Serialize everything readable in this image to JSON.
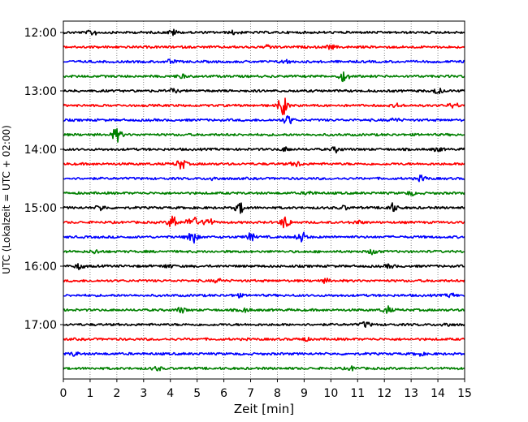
{
  "chart_data": {
    "type": "line",
    "title": "",
    "xlabel": "Zeit  [min]",
    "ylabel": "UTC (Lokalzeit = UTC + 02:00)",
    "xlim": [
      0,
      15
    ],
    "x_ticks": [
      "0",
      "1",
      "2",
      "3",
      "4",
      "5",
      "6",
      "7",
      "8",
      "9",
      "10",
      "11",
      "12",
      "13",
      "14",
      "15"
    ],
    "y_tick_labels": [
      "12:00",
      "13:00",
      "14:00",
      "15:00",
      "16:00",
      "17:00"
    ],
    "grid": "vertical dotted at each minute",
    "legend": "none",
    "trace_colors": [
      "#000000",
      "#ff0000",
      "#0000ff",
      "#008000"
    ],
    "traces": [
      {
        "start": "12:00",
        "events": [
          {
            "t": 1.1,
            "a": 3
          },
          {
            "t": 4.1,
            "a": 3
          },
          {
            "t": 6.4,
            "a": 2
          }
        ]
      },
      {
        "start": "12:15",
        "events": [
          {
            "t": 7.7,
            "a": 2
          },
          {
            "t": 10.0,
            "a": 2
          }
        ]
      },
      {
        "start": "12:30",
        "events": [
          {
            "t": 4.0,
            "a": 2
          },
          {
            "t": 8.3,
            "a": 2
          }
        ]
      },
      {
        "start": "12:45",
        "events": [
          {
            "t": 10.5,
            "a": 6
          },
          {
            "t": 4.4,
            "a": 2
          }
        ]
      },
      {
        "start": "13:00",
        "events": [
          {
            "t": 4.1,
            "a": 2
          },
          {
            "t": 14.0,
            "a": 3
          }
        ]
      },
      {
        "start": "13:15",
        "events": [
          {
            "t": 8.2,
            "a": 11
          },
          {
            "t": 12.5,
            "a": 2
          },
          {
            "t": 14.6,
            "a": 3
          }
        ]
      },
      {
        "start": "13:30",
        "events": [
          {
            "t": 8.4,
            "a": 5
          },
          {
            "t": 12.4,
            "a": 2
          }
        ]
      },
      {
        "start": "13:45",
        "events": [
          {
            "t": 2.0,
            "a": 8
          }
        ]
      },
      {
        "start": "14:00",
        "events": [
          {
            "t": 8.3,
            "a": 2
          },
          {
            "t": 10.2,
            "a": 3
          },
          {
            "t": 14.0,
            "a": 2
          }
        ]
      },
      {
        "start": "14:15",
        "events": [
          {
            "t": 4.4,
            "a": 6
          },
          {
            "t": 8.7,
            "a": 3
          }
        ]
      },
      {
        "start": "14:30",
        "events": [
          {
            "t": 5.6,
            "a": 2
          },
          {
            "t": 13.4,
            "a": 3
          }
        ]
      },
      {
        "start": "14:45",
        "events": [
          {
            "t": 9.2,
            "a": 2
          },
          {
            "t": 13.0,
            "a": 2
          }
        ]
      },
      {
        "start": "15:00",
        "events": [
          {
            "t": 1.4,
            "a": 3
          },
          {
            "t": 6.6,
            "a": 6
          },
          {
            "t": 12.3,
            "a": 5
          },
          {
            "t": 10.5,
            "a": 2
          }
        ]
      },
      {
        "start": "15:15",
        "events": [
          {
            "t": 4.1,
            "a": 8
          },
          {
            "t": 4.8,
            "a": 9
          },
          {
            "t": 5.4,
            "a": 6
          },
          {
            "t": 8.3,
            "a": 7
          },
          {
            "t": 11.0,
            "a": 2
          }
        ]
      },
      {
        "start": "15:30",
        "events": [
          {
            "t": 4.8,
            "a": 9
          },
          {
            "t": 7.0,
            "a": 4
          },
          {
            "t": 8.9,
            "a": 6
          }
        ]
      },
      {
        "start": "15:45",
        "events": [
          {
            "t": 11.6,
            "a": 3
          },
          {
            "t": 1.2,
            "a": 2
          }
        ]
      },
      {
        "start": "16:00",
        "events": [
          {
            "t": 0.6,
            "a": 3
          },
          {
            "t": 3.9,
            "a": 2
          },
          {
            "t": 12.2,
            "a": 2
          }
        ]
      },
      {
        "start": "16:15",
        "events": [
          {
            "t": 5.8,
            "a": 2
          },
          {
            "t": 9.8,
            "a": 2
          }
        ]
      },
      {
        "start": "16:30",
        "events": [
          {
            "t": 6.5,
            "a": 2
          },
          {
            "t": 14.5,
            "a": 2
          }
        ]
      },
      {
        "start": "16:45",
        "events": [
          {
            "t": 4.4,
            "a": 3
          },
          {
            "t": 12.1,
            "a": 4
          },
          {
            "t": 6.8,
            "a": 2
          }
        ]
      },
      {
        "start": "17:00",
        "events": [
          {
            "t": 11.3,
            "a": 3
          },
          {
            "t": 14.3,
            "a": 2
          }
        ]
      },
      {
        "start": "17:15",
        "events": [
          {
            "t": 9.0,
            "a": 2
          }
        ]
      },
      {
        "start": "17:30",
        "events": [
          {
            "t": 0.4,
            "a": 2
          },
          {
            "t": 13.3,
            "a": 2
          }
        ]
      },
      {
        "start": "17:45",
        "events": [
          {
            "t": 3.5,
            "a": 2
          },
          {
            "t": 10.8,
            "a": 2
          }
        ]
      }
    ]
  }
}
